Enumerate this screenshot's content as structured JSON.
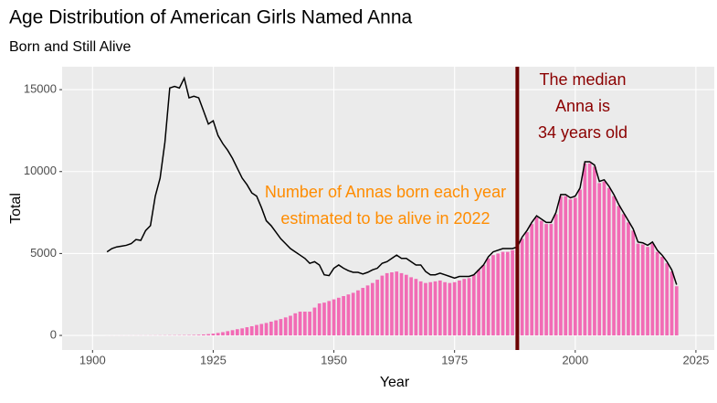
{
  "chart_data": {
    "type": "bar",
    "title": "Age Distribution of American Girls Named Anna",
    "subtitle": "Born and Still Alive",
    "x_label": "Year",
    "y_label": "Total",
    "xlim": [
      1893.7,
      2028.8
    ],
    "ylim": [
      -890,
      16400
    ],
    "xticks": [
      1900,
      1925,
      1950,
      1975,
      2000,
      2025
    ],
    "yticks": [
      0,
      5000,
      10000,
      15000
    ],
    "grid": true,
    "x": [
      1903,
      1904,
      1905,
      1906,
      1907,
      1908,
      1909,
      1910,
      1911,
      1912,
      1913,
      1914,
      1915,
      1916,
      1917,
      1918,
      1919,
      1920,
      1921,
      1922,
      1923,
      1924,
      1925,
      1926,
      1927,
      1928,
      1929,
      1930,
      1931,
      1932,
      1933,
      1934,
      1935,
      1936,
      1937,
      1938,
      1939,
      1940,
      1941,
      1942,
      1943,
      1944,
      1945,
      1946,
      1947,
      1948,
      1949,
      1950,
      1951,
      1952,
      1953,
      1954,
      1955,
      1956,
      1957,
      1958,
      1959,
      1960,
      1961,
      1962,
      1963,
      1964,
      1965,
      1966,
      1967,
      1968,
      1969,
      1970,
      1971,
      1972,
      1973,
      1974,
      1975,
      1976,
      1977,
      1978,
      1979,
      1980,
      1981,
      1982,
      1983,
      1984,
      1985,
      1986,
      1987,
      1988,
      1989,
      1990,
      1991,
      1992,
      1993,
      1994,
      1995,
      1996,
      1997,
      1998,
      1999,
      2000,
      2001,
      2002,
      2003,
      2004,
      2005,
      2006,
      2007,
      2008,
      2009,
      2010,
      2011,
      2012,
      2013,
      2014,
      2015,
      2016,
      2017,
      2018,
      2019,
      2020,
      2021
    ],
    "series": [
      {
        "name": "Number of Annas born each year",
        "type": "line",
        "color": "#000000",
        "values": [
          5100,
          5300,
          5400,
          5450,
          5500,
          5600,
          5850,
          5800,
          6400,
          6700,
          8500,
          9600,
          11800,
          15100,
          15200,
          15100,
          15700,
          14500,
          14600,
          14500,
          13700,
          12900,
          13100,
          12200,
          11700,
          11300,
          10800,
          10200,
          9600,
          9200,
          8700,
          8500,
          7800,
          7000,
          6700,
          6300,
          5900,
          5600,
          5300,
          5100,
          4900,
          4700,
          4400,
          4500,
          4300,
          3700,
          3650,
          4100,
          4300,
          4100,
          3950,
          3850,
          3850,
          3750,
          3850,
          4000,
          4100,
          4400,
          4500,
          4700,
          4900,
          4700,
          4700,
          4500,
          4300,
          4300,
          3900,
          3700,
          3700,
          3800,
          3700,
          3600,
          3500,
          3600,
          3600,
          3600,
          3700,
          4000,
          4300,
          4800,
          5100,
          5200,
          5300,
          5300,
          5300,
          5400,
          6000,
          6400,
          6900,
          7300,
          7100,
          6900,
          6900,
          7500,
          8600,
          8600,
          8400,
          8500,
          9000,
          10600,
          10600,
          10400,
          9400,
          9500,
          9100,
          8600,
          8000,
          7500,
          7000,
          6500,
          5700,
          5650,
          5500,
          5700,
          5200,
          4900,
          4500,
          4000,
          3100
        ]
      },
      {
        "name": "estimated to be alive in 2022",
        "type": "bar",
        "color": "#f26bb5",
        "values": [
          2,
          3,
          3,
          4,
          4,
          5,
          6,
          7,
          8,
          9,
          10,
          12,
          14,
          16,
          18,
          20,
          22,
          25,
          30,
          40,
          60,
          80,
          110,
          150,
          200,
          260,
          320,
          380,
          430,
          500,
          560,
          640,
          700,
          760,
          840,
          920,
          1000,
          1100,
          1200,
          1350,
          1450,
          1450,
          1450,
          1700,
          1950,
          2000,
          2100,
          2200,
          2300,
          2400,
          2500,
          2600,
          2750,
          2900,
          3050,
          3200,
          3400,
          3650,
          3800,
          3850,
          3900,
          3800,
          3700,
          3550,
          3450,
          3300,
          3200,
          3250,
          3300,
          3350,
          3250,
          3200,
          3250,
          3350,
          3450,
          3500,
          3700,
          4000,
          4300,
          4700,
          4900,
          5000,
          5100,
          5100,
          5200,
          5300,
          5900,
          6300,
          6800,
          7200,
          7000,
          6800,
          6800,
          7400,
          8500,
          8500,
          8300,
          8400,
          8900,
          10500,
          10500,
          10300,
          9300,
          9400,
          9000,
          8500,
          7900,
          7400,
          6900,
          6400,
          5600,
          5550,
          5400,
          5600,
          5100,
          4800,
          4400,
          3900,
          3000
        ]
      }
    ],
    "median_year": 1988,
    "median_color": "#6b0000",
    "annotations": [
      {
        "lines": [
          "Number of Annas born each year",
          "estimated to be alive in 2022"
        ],
        "color": "#ff8c00"
      },
      {
        "lines": [
          "The median",
          "Anna is",
          "34 years old"
        ],
        "color": "#8b0000"
      }
    ]
  }
}
